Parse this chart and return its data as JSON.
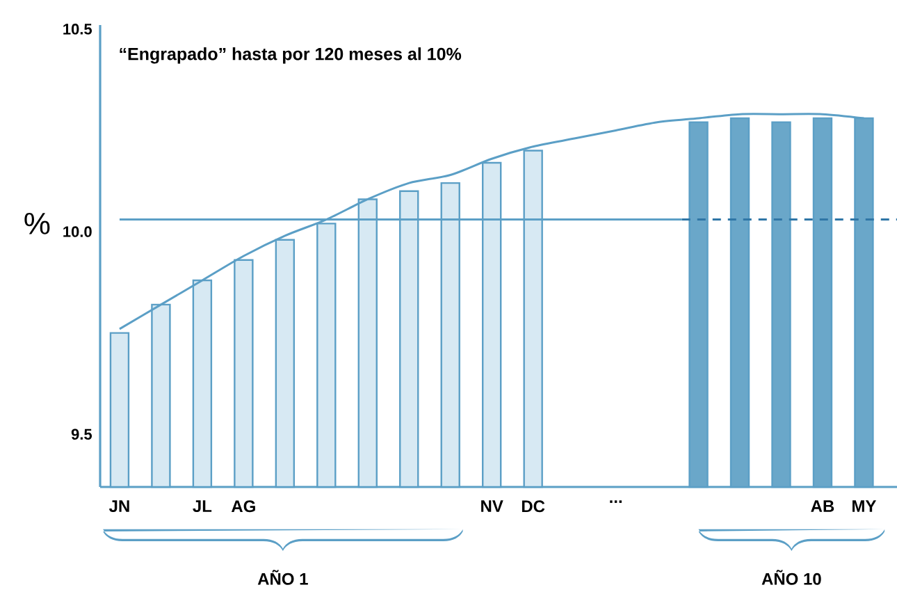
{
  "chart_data": {
    "type": "bar",
    "title": "“Engrapado” hasta por 120 meses al 10%",
    "ylabel": "%",
    "categories": [
      "JN",
      null,
      "JL",
      "AG",
      null,
      null,
      null,
      null,
      null,
      "NV",
      "DC",
      null,
      "...",
      null,
      null,
      null,
      null,
      "AB",
      "MY"
    ],
    "series": [
      {
        "values": [
          9.75,
          9.82,
          9.88,
          9.93,
          9.98,
          10.02,
          10.08,
          10.1,
          10.12,
          10.17,
          10.2,
          null,
          null,
          null,
          10.27,
          10.28,
          10.27,
          10.28,
          10.28
        ],
        "colors": [
          "#d7e9f3",
          "#d7e9f3",
          "#d7e9f3",
          "#d7e9f3",
          "#d7e9f3",
          "#d7e9f3",
          "#d7e9f3",
          "#d7e9f3",
          "#d7e9f3",
          "#d7e9f3",
          "#d7e9f3",
          null,
          null,
          null,
          "#6aa7c9",
          "#6aa7c9",
          "#6aa7c9",
          "#6aa7c9",
          "#6aa7c9"
        ]
      },
      {
        "type": "line",
        "color": "#5b9fc6",
        "values": [
          9.76,
          9.82,
          9.88,
          9.94,
          9.99,
          10.03,
          10.08,
          10.12,
          10.14,
          10.18,
          10.21,
          10.23,
          10.25,
          10.27,
          10.28,
          10.29,
          10.29,
          10.29,
          10.28
        ]
      }
    ],
    "ref_lines": [
      {
        "axis": "y",
        "value": 10.03,
        "color": "#5b9fc6",
        "line_style": "solid"
      },
      {
        "axis": "y",
        "value": 10.03,
        "color": "#2f76a6",
        "line_style": "dashed"
      }
    ],
    "ylim": [
      9.37,
      10.51
    ],
    "yticks": [
      9.5,
      {
        "value": 10,
        "label": "10.0"
      },
      10.5
    ],
    "annotations": [
      "AÑO 1",
      "AÑO 10"
    ]
  }
}
